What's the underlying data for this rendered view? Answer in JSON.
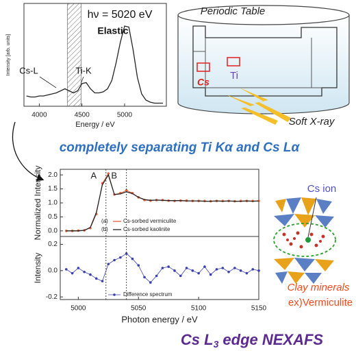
{
  "chart_data": [
    {
      "type": "line",
      "annotations": [
        "hν = 5020 eV",
        "Elastic",
        "Cs-L",
        "Ti-K"
      ],
      "x_label": "Energy / eV",
      "y_label": "Intensity [arb. units]",
      "xlim": [
        3820,
        5490
      ],
      "xticks": [
        4000,
        4500,
        5000
      ],
      "ylim": [
        0,
        1
      ],
      "shaded_range": [
        4330,
        4490
      ],
      "x": [
        3850,
        3900,
        3950,
        4000,
        4050,
        4100,
        4150,
        4200,
        4250,
        4300,
        4350,
        4400,
        4450,
        4500,
        4550,
        4600,
        4650,
        4700,
        4750,
        4800,
        4850,
        4900,
        4950,
        5000,
        5050,
        5100,
        5150,
        5200,
        5250,
        5300,
        5350,
        5400,
        5450
      ],
      "series": [
        {
          "color": "#222222",
          "marker": false,
          "values": [
            0.1,
            0.09,
            0.09,
            0.1,
            0.1,
            0.11,
            0.12,
            0.13,
            0.15,
            0.17,
            0.15,
            0.13,
            0.15,
            0.22,
            0.23,
            0.17,
            0.13,
            0.13,
            0.14,
            0.17,
            0.25,
            0.42,
            0.62,
            0.78,
            0.77,
            0.55,
            0.28,
            0.12,
            0.06,
            0.04,
            0.03,
            0.03,
            0.03
          ]
        }
      ]
    },
    {
      "type": "line",
      "y_label": "Normalized Intensity",
      "xlim": [
        4985,
        5150
      ],
      "ylim": [
        -0.2,
        2.2
      ],
      "yticks": [
        {
          "value": 0,
          "label": "0.0"
        },
        0.5,
        {
          "value": 1,
          "label": "1.0"
        },
        1.5,
        {
          "value": 2,
          "label": "2.0"
        }
      ],
      "vlines": [
        {
          "value": 5023,
          "label": "A"
        },
        {
          "value": 5040,
          "label": "B"
        }
      ],
      "x": [
        4990,
        4995,
        5000,
        5005,
        5010,
        5015,
        5020,
        5025,
        5030,
        5035,
        5040,
        5045,
        5050,
        5055,
        5060,
        5065,
        5070,
        5075,
        5080,
        5085,
        5090,
        5095,
        5100,
        5105,
        5110,
        5115,
        5120,
        5125,
        5130,
        5135,
        5140,
        5145,
        5150
      ],
      "series": [
        {
          "name": "Cs-sorbed vermiculite",
          "tag": "(a)",
          "color": "#e8603a",
          "marker": true,
          "values": [
            0.0,
            0.0,
            0.01,
            0.02,
            0.1,
            0.6,
            1.7,
            2.05,
            1.3,
            1.35,
            1.45,
            1.35,
            1.2,
            1.1,
            1.08,
            1.1,
            1.1,
            1.08,
            1.07,
            1.08,
            1.08,
            1.07,
            1.07,
            1.07,
            1.06,
            1.07,
            1.07,
            1.07,
            1.06,
            1.07,
            1.07,
            1.07,
            1.07
          ]
        },
        {
          "name": "Cs-sorbed kaolinite",
          "tag": "(b)",
          "color": "#222222",
          "marker": false,
          "values": [
            0.0,
            0.0,
            0.0,
            0.02,
            0.12,
            0.65,
            1.65,
            2.0,
            1.3,
            1.32,
            1.4,
            1.33,
            1.2,
            1.12,
            1.09,
            1.1,
            1.09,
            1.08,
            1.08,
            1.08,
            1.07,
            1.07,
            1.07,
            1.06,
            1.06,
            1.07,
            1.06,
            1.07,
            1.06,
            1.06,
            1.07,
            1.06,
            1.07
          ]
        }
      ]
    },
    {
      "type": "line",
      "x_label": "Photon energy / eV",
      "y_label": "Intensity",
      "xlim": [
        4985,
        5150
      ],
      "xticks": [
        5000,
        5050,
        5100,
        5150
      ],
      "ylim": [
        -0.22,
        0.26
      ],
      "yticks": [
        0.2,
        {
          "value": 0,
          "label": "0.0"
        },
        -0.2
      ],
      "x": [
        4990,
        4995,
        5000,
        5005,
        5010,
        5015,
        5020,
        5025,
        5030,
        5035,
        5040,
        5045,
        5050,
        5055,
        5060,
        5065,
        5070,
        5075,
        5080,
        5085,
        5090,
        5095,
        5100,
        5105,
        5110,
        5115,
        5120,
        5125,
        5130,
        5135,
        5140,
        5145,
        5150
      ],
      "series": [
        {
          "name": "Difference spectrum",
          "color": "#3a3fb0",
          "marker": true,
          "values": [
            0.01,
            -0.02,
            0.02,
            -0.01,
            -0.03,
            -0.06,
            -0.08,
            0.05,
            0.08,
            0.1,
            0.13,
            0.09,
            0.04,
            -0.05,
            -0.09,
            -0.04,
            0.02,
            0.03,
            0.0,
            -0.04,
            0.02,
            0.0,
            -0.02,
            0.03,
            -0.03,
            0.01,
            0.02,
            -0.01,
            0.02,
            0.0,
            -0.02,
            0.01,
            0.0
          ]
        }
      ]
    }
  ],
  "headline": "completely separating Ti Kα and Cs Lα",
  "bottom_title": {
    "main": "Cs L",
    "subscript": "3",
    "rest": "edge NEXAFS"
  },
  "periodic_table": {
    "title": "Periodic Table",
    "elements": [
      "Cs",
      "Ti"
    ],
    "beam": "Soft X-ray"
  },
  "clay": {
    "ion": "Cs ion",
    "mineral": "Clay minerals",
    "example": "ex)Vermiculite"
  }
}
